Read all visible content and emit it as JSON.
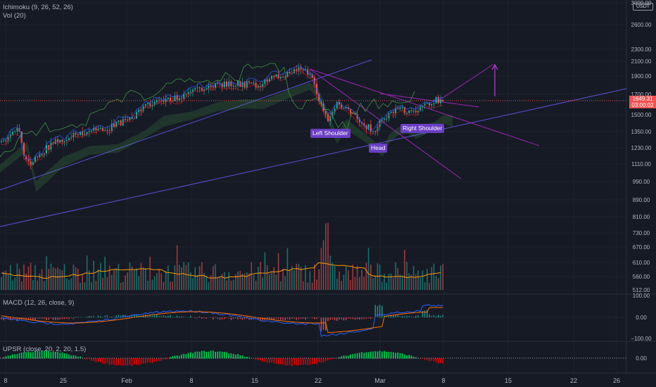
{
  "colors": {
    "background": "#161a25",
    "axis_text": "#b2b5be",
    "grid": "#1e222d",
    "up": "#26a69a",
    "down": "#ef5350",
    "pattern": "#9c27b0",
    "trend": "#5b51d8",
    "label_bg": "#6a3fc3",
    "price_tag": "#f05350",
    "macd_line": "#2962ff",
    "signal_line": "#ff6d00",
    "vol_ma": "#ff9800"
  },
  "legends": {
    "ichimoku": "Ichimoku (9, 26, 52, 26)",
    "vol": "Vol (20)",
    "macd": "MACD (12, 26, close, 9)",
    "upsr": "UPSR (close, 20, 2, 20, 1.5)"
  },
  "price_axis": {
    "ticks": [
      "3000.00",
      "2600.00",
      "2300.00",
      "2100.00",
      "1900.00",
      "1700.00",
      "1500.00",
      "1350.00",
      "1230.00",
      "1110.00",
      "990.00",
      "890.00",
      "810.00",
      "730.00",
      "670.00",
      "610.00",
      "560.00",
      "512.00"
    ],
    "unit": "USDT",
    "last_price": "1649.31",
    "countdown": "03:00:02"
  },
  "macd_axis": {
    "ticks": [
      "100.00",
      "0.00",
      "−100.00"
    ]
  },
  "upsr_axis": {
    "ticks": [
      "0.00"
    ]
  },
  "time_axis": {
    "ticks": [
      "8",
      "25",
      "Feb",
      "8",
      "15",
      "22",
      "Mar",
      "8",
      "15",
      "22",
      "26"
    ]
  },
  "annotations": {
    "left_shoulder": "Left Shoulder",
    "head": "Head",
    "right_shoulder": "Right Shoulder"
  },
  "chart_data": {
    "type": "line",
    "symbol_pair_quote": "USDT",
    "price_scale": "log",
    "indicators": [
      "Ichimoku (9, 26, 52, 26)",
      "Vol (20)",
      "MACD (12, 26, close, 9)",
      "UPSR (close, 20, 2, 20, 1.5)"
    ],
    "close_path": [
      {
        "x": "Jan 11",
        "y": 1150
      },
      {
        "x": "Jan 14",
        "y": 1250
      },
      {
        "x": "Jan 17",
        "y": 1200
      },
      {
        "x": "Jan 20",
        "y": 1380
      },
      {
        "x": "Jan 21",
        "y": 1100
      },
      {
        "x": "Jan 24",
        "y": 1270
      },
      {
        "x": "Jan 27",
        "y": 1350
      },
      {
        "x": "Jan 30",
        "y": 1380
      },
      {
        "x": "Feb 2",
        "y": 1500
      },
      {
        "x": "Feb 4",
        "y": 1630
      },
      {
        "x": "Feb 7",
        "y": 1680
      },
      {
        "x": "Feb 10",
        "y": 1780
      },
      {
        "x": "Feb 13",
        "y": 1820
      },
      {
        "x": "Feb 15",
        "y": 1790
      },
      {
        "x": "Feb 18",
        "y": 1920
      },
      {
        "x": "Feb 20",
        "y": 2010
      },
      {
        "x": "Feb 21",
        "y": 1930
      },
      {
        "x": "Feb 22",
        "y": 1650
      },
      {
        "x": "Feb 23",
        "y": 1460
      },
      {
        "x": "Feb 24",
        "y": 1600
      },
      {
        "x": "Feb 26",
        "y": 1480
      },
      {
        "x": "Feb 28",
        "y": 1350
      },
      {
        "x": "Mar 1",
        "y": 1440
      },
      {
        "x": "Mar 2",
        "y": 1520
      },
      {
        "x": "Mar 3",
        "y": 1560
      },
      {
        "x": "Mar 4",
        "y": 1520
      },
      {
        "x": "Mar 6",
        "y": 1580
      },
      {
        "x": "Mar 7",
        "y": 1640
      },
      {
        "x": "Mar 8",
        "y": 1649.31
      }
    ],
    "projection_target": 2070,
    "macd_range": [
      -100,
      100
    ],
    "grid": true
  }
}
